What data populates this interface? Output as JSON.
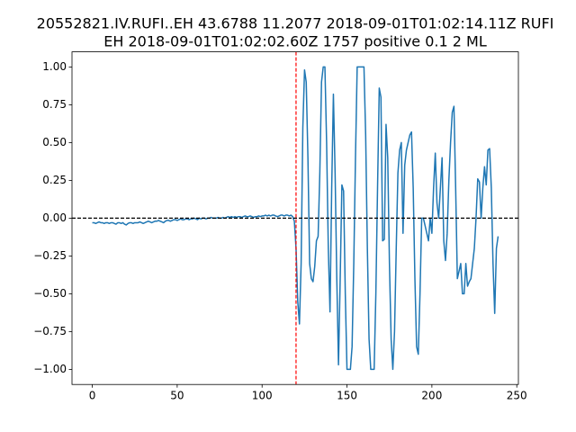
{
  "chart_data": {
    "type": "line",
    "title": [
      "20552821.IV.RUFI..EH 43.6788 11.2077 2018-09-01T01:02:14.11Z RUFI",
      "EH 2018-09-01T01:02:02.60Z 1757 positive 0.1 2 ML"
    ],
    "series": [
      {
        "color": "#1f77b4",
        "values": [
          -0.03,
          -0.03,
          -0.035,
          -0.03,
          -0.025,
          -0.03,
          -0.03,
          -0.035,
          -0.03,
          -0.03,
          -0.035,
          -0.03,
          -0.03,
          -0.035,
          -0.04,
          -0.03,
          -0.03,
          -0.035,
          -0.03,
          -0.04,
          -0.045,
          -0.035,
          -0.03,
          -0.03,
          -0.035,
          -0.03,
          -0.03,
          -0.03,
          -0.025,
          -0.03,
          -0.035,
          -0.03,
          -0.025,
          -0.02,
          -0.025,
          -0.03,
          -0.025,
          -0.02,
          -0.02,
          -0.015,
          -0.02,
          -0.025,
          -0.03,
          -0.02,
          -0.015,
          -0.015,
          -0.02,
          -0.015,
          -0.01,
          -0.01,
          -0.015,
          -0.01,
          -0.005,
          -0.01,
          -0.01,
          -0.005,
          -0.005,
          -0.01,
          -0.005,
          -0.005,
          0.0,
          -0.005,
          -0.01,
          0.0,
          -0.005,
          0.0,
          0.0,
          -0.005,
          0.0,
          0.0,
          0.005,
          0.0,
          0.0,
          0.0,
          0.005,
          0.0,
          0.0,
          0.005,
          0.0,
          0.005,
          0.01,
          0.005,
          0.01,
          0.005,
          0.01,
          0.005,
          0.01,
          0.01,
          0.005,
          0.01,
          0.015,
          0.01,
          0.01,
          0.015,
          0.01,
          0.005,
          0.01,
          0.01,
          0.015,
          0.01,
          0.015,
          0.015,
          0.02,
          0.015,
          0.02,
          0.015,
          0.02,
          0.02,
          0.015,
          0.01,
          0.015,
          0.02,
          0.02,
          0.015,
          0.02,
          0.02,
          0.015,
          0.02,
          0.01,
          -0.02,
          -0.2,
          -0.55,
          -0.7,
          -0.3,
          0.6,
          0.98,
          0.9,
          0.4,
          -0.3,
          -0.4,
          -0.42,
          -0.32,
          -0.15,
          -0.12,
          0.3,
          0.9,
          1.0,
          1.0,
          0.5,
          -0.2,
          -0.62,
          0.2,
          0.82,
          0.3,
          -0.4,
          -0.97,
          -0.4,
          0.22,
          0.18,
          -0.5,
          -1.0,
          -1.0,
          -1.0,
          -0.85,
          -0.3,
          0.4,
          1.0,
          1.0,
          1.0,
          1.0,
          1.0,
          0.55,
          -0.2,
          -0.8,
          -1.0,
          -1.0,
          -1.0,
          -0.5,
          0.2,
          0.86,
          0.8,
          -0.15,
          -0.14,
          0.62,
          0.4,
          -0.3,
          -0.8,
          -1.0,
          -0.75,
          -0.2,
          0.3,
          0.45,
          0.5,
          -0.1,
          0.35,
          0.45,
          0.5,
          0.55,
          0.57,
          0.2,
          -0.4,
          -0.85,
          -0.9,
          -0.5,
          0.0,
          0.0,
          -0.05,
          -0.1,
          -0.15,
          0.0,
          -0.1,
          0.2,
          0.43,
          0.1,
          0.0,
          0.2,
          0.4,
          -0.15,
          -0.28,
          -0.1,
          0.25,
          0.5,
          0.7,
          0.74,
          0.2,
          -0.4,
          -0.35,
          -0.3,
          -0.5,
          -0.5,
          -0.3,
          -0.45,
          -0.42,
          -0.4,
          -0.3,
          -0.2,
          0.0,
          0.26,
          0.24,
          0.0,
          0.2,
          0.34,
          0.22,
          0.45,
          0.46,
          0.2,
          -0.3,
          -0.63,
          -0.2,
          -0.12
        ]
      }
    ],
    "xlim": [
      -11.95,
      250.95
    ],
    "xticks": [
      0,
      50,
      100,
      150,
      200,
      250
    ],
    "ylim": [
      -1.1,
      1.1
    ],
    "yticks": [
      {
        "value": -1,
        "label": "−1.00"
      },
      {
        "value": -0.75,
        "label": "−0.75"
      },
      {
        "value": -0.5,
        "label": "−0.50"
      },
      {
        "value": -0.25,
        "label": "−0.25"
      },
      {
        "value": 0,
        "label": "0.00"
      },
      {
        "value": 0.25,
        "label": "0.25"
      },
      {
        "value": 0.5,
        "label": "0.50"
      },
      {
        "value": 0.75,
        "label": "0.75"
      },
      {
        "value": 1,
        "label": "1.00"
      }
    ],
    "hline": {
      "y": 0,
      "color": "#000000"
    },
    "vline": {
      "x": 120,
      "color": "#ff0000"
    }
  }
}
